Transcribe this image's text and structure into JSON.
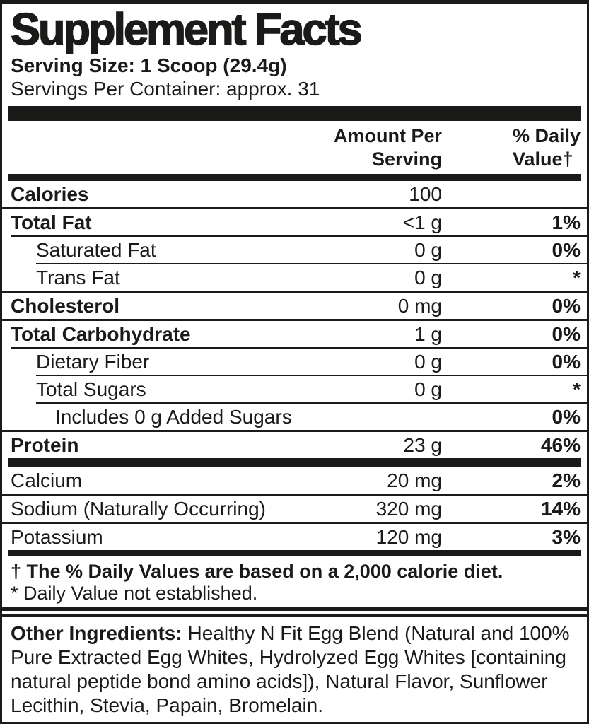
{
  "colors": {
    "ink": "#1a1a18",
    "background": "#ffffff"
  },
  "label": {
    "title": "Supplement Facts",
    "serving_size": "Serving Size: 1 Scoop (29.4g)",
    "servings_per_container": "Servings Per Container: approx. 31",
    "columns": {
      "amount_line1": "Amount Per",
      "amount_line2": "Serving",
      "daily_line1": "% Daily",
      "daily_line2": "Value†"
    },
    "rows": [
      {
        "name": "Calories",
        "amount": "100",
        "dv": ""
      },
      {
        "name": "Total Fat",
        "amount": "<1 g",
        "dv": "1%"
      },
      {
        "name": "Saturated Fat",
        "amount": "0 g",
        "dv": "0%"
      },
      {
        "name": "Trans Fat",
        "amount": "0 g",
        "dv": "*"
      },
      {
        "name": "Cholesterol",
        "amount": "0 mg",
        "dv": "0%"
      },
      {
        "name": "Total Carbohydrate",
        "amount": "1 g",
        "dv": "0%"
      },
      {
        "name": "Dietary Fiber",
        "amount": "0 g",
        "dv": "0%"
      },
      {
        "name": "Total Sugars",
        "amount": "0 g",
        "dv": "*"
      },
      {
        "name": "Includes 0 g Added Sugars",
        "amount": "",
        "dv": "0%"
      },
      {
        "name": "Protein",
        "amount": "23 g",
        "dv": "46%"
      }
    ],
    "minerals": [
      {
        "name": "Calcium",
        "amount": "20 mg",
        "dv": "2%"
      },
      {
        "name": "Sodium (Naturally Occurring)",
        "amount": "320 mg",
        "dv": "14%"
      },
      {
        "name": "Potassium",
        "amount": "120 mg",
        "dv": "3%"
      }
    ],
    "footnotes": {
      "dagger": "† The % Daily Values are based on a 2,000 calorie diet.",
      "asterisk": "* Daily Value not established."
    },
    "other_ingredients": {
      "label": "Other Ingredients:",
      "text": "Healthy N Fit Egg Blend (Natural and 100% Pure Extracted Egg Whites, Hydrolyzed Egg Whites [containing natural peptide bond amino acids]), Natural Flavor, Sunflower Lecithin, Stevia, Papain, Bromelain."
    }
  }
}
